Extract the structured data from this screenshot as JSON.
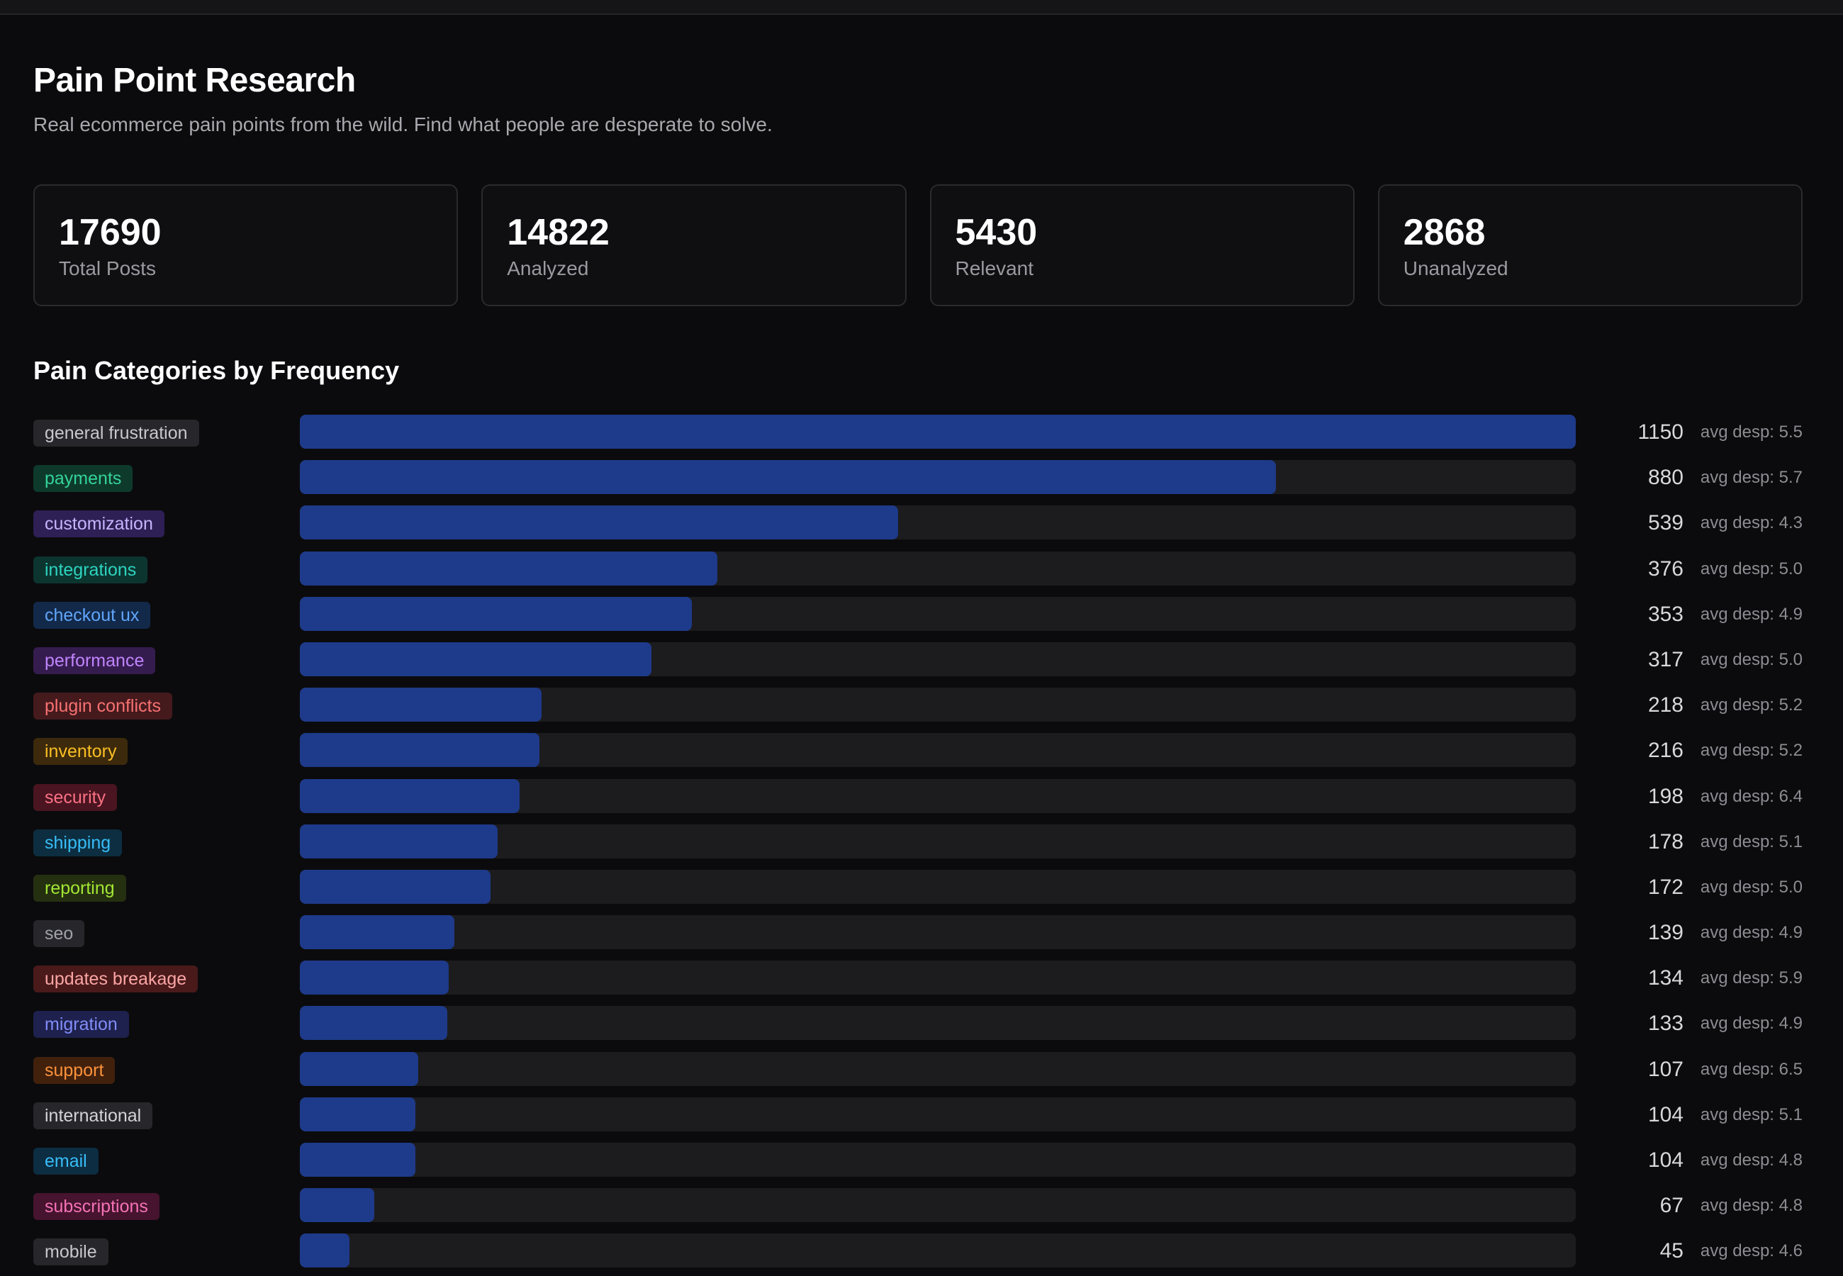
{
  "page": {
    "title": "Pain Point Research",
    "subtitle": "Real ecommerce pain points from the wild. Find what people are desperate to solve."
  },
  "stats": [
    {
      "value": "17690",
      "label": "Total Posts"
    },
    {
      "value": "14822",
      "label": "Analyzed"
    },
    {
      "value": "5430",
      "label": "Relevant"
    },
    {
      "value": "2868",
      "label": "Unanalyzed"
    }
  ],
  "section": {
    "title": "Pain Categories by Frequency"
  },
  "bar_color": "#1e3a8a",
  "track_color": "#1c1c1f",
  "categories": [
    {
      "name": "general frustration",
      "count": 1150,
      "desp": "avg desp: 5.5",
      "text_color": "#c7c7cc",
      "bg_color": "#27272b"
    },
    {
      "name": "payments",
      "count": 880,
      "desp": "avg desp: 5.7",
      "text_color": "#34d399",
      "bg_color": "#0e3a2c"
    },
    {
      "name": "customization",
      "count": 539,
      "desp": "avg desp: 4.3",
      "text_color": "#c4b5fd",
      "bg_color": "#2e1f55"
    },
    {
      "name": "integrations",
      "count": 376,
      "desp": "avg desp: 5.0",
      "text_color": "#2dd4bf",
      "bg_color": "#0c3530"
    },
    {
      "name": "checkout ux",
      "count": 353,
      "desp": "avg desp: 4.9",
      "text_color": "#60a5fa",
      "bg_color": "#12294a"
    },
    {
      "name": "performance",
      "count": 317,
      "desp": "avg desp: 5.0",
      "text_color": "#c084fc",
      "bg_color": "#351c4f"
    },
    {
      "name": "plugin conflicts",
      "count": 218,
      "desp": "avg desp: 5.2",
      "text_color": "#f87171",
      "bg_color": "#451a1d"
    },
    {
      "name": "inventory",
      "count": 216,
      "desp": "avg desp: 5.2",
      "text_color": "#fbbf24",
      "bg_color": "#3d2a0c"
    },
    {
      "name": "security",
      "count": 198,
      "desp": "avg desp: 6.4",
      "text_color": "#fb7185",
      "bg_color": "#4a1520"
    },
    {
      "name": "shipping",
      "count": 178,
      "desp": "avg desp: 5.1",
      "text_color": "#38bdf8",
      "bg_color": "#0c2e40"
    },
    {
      "name": "reporting",
      "count": 172,
      "desp": "avg desp: 5.0",
      "text_color": "#a3e635",
      "bg_color": "#243010"
    },
    {
      "name": "seo",
      "count": 139,
      "desp": "avg desp: 4.9",
      "text_color": "#a1a1aa",
      "bg_color": "#27272b"
    },
    {
      "name": "updates breakage",
      "count": 134,
      "desp": "avg desp: 5.9",
      "text_color": "#fca5a5",
      "bg_color": "#4a1a1a"
    },
    {
      "name": "migration",
      "count": 133,
      "desp": "avg desp: 4.9",
      "text_color": "#818cf8",
      "bg_color": "#1e214d"
    },
    {
      "name": "support",
      "count": 107,
      "desp": "avg desp: 6.5",
      "text_color": "#fb923c",
      "bg_color": "#42210c"
    },
    {
      "name": "international",
      "count": 104,
      "desp": "avg desp: 5.1",
      "text_color": "#d4d4d8",
      "bg_color": "#27272b"
    },
    {
      "name": "email",
      "count": 104,
      "desp": "avg desp: 4.8",
      "text_color": "#38bdf8",
      "bg_color": "#0c2d42"
    },
    {
      "name": "subscriptions",
      "count": 67,
      "desp": "avg desp: 4.8",
      "text_color": "#f472b6",
      "bg_color": "#46142e"
    },
    {
      "name": "mobile",
      "count": 45,
      "desp": "avg desp: 4.6",
      "text_color": "#c7c7cc",
      "bg_color": "#27272b"
    }
  ]
}
